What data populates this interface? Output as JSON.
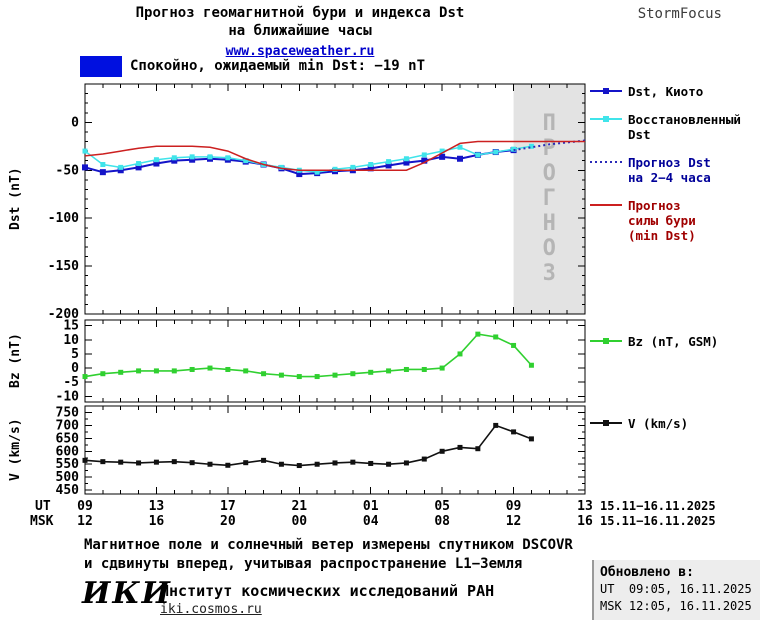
{
  "header": {
    "title_line1": "Прогноз геомагнитной бури и индекса Dst",
    "title_line2": "на ближайшие часы",
    "site_link": "www.spaceweather.ru",
    "brand": "StormFocus"
  },
  "status": {
    "label": "Спокойно, ожидаемый min Dst: −19 nT",
    "swatch_color": "#0010e0"
  },
  "axis": {
    "xlim": [
      0,
      28
    ],
    "ticks_hours": [
      0,
      4,
      8,
      12,
      16,
      20,
      24,
      28
    ],
    "ut_label": "UT",
    "msk_label": "MSK",
    "ut_tick_labels": [
      "09",
      "13",
      "17",
      "21",
      "01",
      "05",
      "09",
      "13"
    ],
    "msk_tick_labels": [
      "12",
      "16",
      "20",
      "00",
      "04",
      "08",
      "12",
      "16"
    ],
    "date_range_ut": "15.11−16.11.2025",
    "date_range_msk": "15.11−16.11.2025"
  },
  "chart_data": [
    {
      "type": "line",
      "ylabel": "Dst (nT)",
      "ylim": [
        -200,
        40
      ],
      "yticks": [
        0,
        -50,
        -100,
        -150,
        -200
      ],
      "yminor": 10,
      "forecast_region": {
        "x_start": 24,
        "x_end": 28,
        "label": "ПРОГНОЗ",
        "fill": "#e3e3e3",
        "text_color": "#b5b5b5"
      },
      "series": [
        {
          "name": "Dst, Киото",
          "color": "#1414c8",
          "style": "solid",
          "width": 2,
          "marker": "square",
          "marker_size": 6,
          "x": [
            0,
            1,
            2,
            3,
            4,
            5,
            6,
            7,
            8,
            9,
            10,
            11,
            12,
            13,
            14,
            15,
            16,
            17,
            18,
            19,
            20,
            21,
            22,
            23,
            24
          ],
          "values": [
            -47,
            -52,
            -50,
            -47,
            -43,
            -40,
            -39,
            -38,
            -39,
            -41,
            -44,
            -48,
            -54,
            -53,
            -51,
            -50,
            -48,
            -45,
            -42,
            -40,
            -36,
            -38,
            -34,
            -31,
            -29
          ]
        },
        {
          "name": "Восстановленный Dst",
          "color": "#40e4ea",
          "style": "solid",
          "width": 1.5,
          "marker": "square",
          "marker_size": 5,
          "x": [
            0,
            1,
            2,
            3,
            4,
            5,
            6,
            7,
            8,
            9,
            10,
            11,
            12,
            13,
            14,
            15,
            16,
            17,
            18,
            19,
            20,
            21,
            22,
            23,
            24,
            25
          ],
          "values": [
            -30,
            -44,
            -47,
            -43,
            -39,
            -37,
            -36,
            -36,
            -37,
            -40,
            -44,
            -47,
            -50,
            -52,
            -49,
            -47,
            -44,
            -41,
            -38,
            -34,
            -30,
            -26,
            -34,
            -31,
            -28,
            -25
          ]
        },
        {
          "name": "Прогноз Dst на 2−4 часа",
          "color": "#2a2ab8",
          "style": "dotted",
          "width": 2,
          "marker": "none",
          "label_color": "#000099",
          "x": [
            24,
            25,
            26,
            27,
            28
          ],
          "values": [
            -29,
            -26,
            -23,
            -21,
            -19
          ]
        },
        {
          "name": "Прогноз силы бури (min Dst)",
          "color": "#cc2020",
          "style": "solid",
          "width": 1.5,
          "marker": "none",
          "label_color": "#a00000",
          "x": [
            0,
            1,
            2,
            3,
            4,
            5,
            6,
            7,
            8,
            9,
            10,
            11,
            12,
            13,
            14,
            15,
            16,
            17,
            18,
            19,
            20,
            21,
            22,
            28
          ],
          "values": [
            -35,
            -33,
            -30,
            -27,
            -25,
            -25,
            -25,
            -26,
            -30,
            -38,
            -44,
            -48,
            -50,
            -50,
            -50,
            -50,
            -50,
            -50,
            -50,
            -42,
            -32,
            -22,
            -20,
            -20
          ]
        }
      ]
    },
    {
      "type": "line",
      "ylabel": "Bz (nT)",
      "ylim": [
        -12,
        17
      ],
      "yticks": [
        15,
        10,
        5,
        0,
        -5,
        -10
      ],
      "yminor": null,
      "series": [
        {
          "name": "Bz (nT, GSM)",
          "color": "#30d030",
          "style": "solid",
          "width": 1.6,
          "marker": "square",
          "marker_size": 5,
          "x": [
            0,
            1,
            2,
            3,
            4,
            5,
            6,
            7,
            8,
            9,
            10,
            11,
            12,
            13,
            14,
            15,
            16,
            17,
            18,
            19,
            20,
            21,
            22,
            23,
            24,
            25
          ],
          "values": [
            -3,
            -2,
            -1.5,
            -1,
            -1,
            -1,
            -0.5,
            0,
            -0.5,
            -1,
            -2,
            -2.5,
            -3,
            -3,
            -2.5,
            -2,
            -1.5,
            -1,
            -0.5,
            -0.5,
            0,
            5,
            12,
            11,
            8,
            1
          ]
        }
      ]
    },
    {
      "type": "line",
      "ylabel": "V (km/s)",
      "ylim": [
        435,
        775
      ],
      "yticks": [
        750,
        700,
        650,
        600,
        550,
        500,
        450
      ],
      "yminor": 25,
      "series": [
        {
          "name": "V (km/s)",
          "color": "#111111",
          "style": "solid",
          "width": 1.6,
          "marker": "square",
          "marker_size": 5,
          "x": [
            0,
            1,
            2,
            3,
            4,
            5,
            6,
            7,
            8,
            9,
            10,
            11,
            12,
            13,
            14,
            15,
            16,
            17,
            18,
            19,
            20,
            21,
            22,
            23,
            24,
            25
          ],
          "values": [
            565,
            560,
            558,
            555,
            558,
            560,
            556,
            550,
            546,
            556,
            565,
            550,
            545,
            550,
            555,
            558,
            553,
            550,
            555,
            570,
            600,
            615,
            610,
            700,
            675,
            648
          ]
        }
      ]
    }
  ],
  "footer": {
    "note_line1": "Магнитное поле и солнечный ветер измерены спутником DSCOVR",
    "note_line2": "и сдвинуты вперед, учитывая распространение L1−Земля",
    "logo": "ИКИ",
    "institute": "Институт космических исследований РАН",
    "site": "iki.cosmos.ru",
    "updated_label": "Обновлено в:",
    "updated_ut": "UT  09:05, 16.11.2025",
    "updated_msk": "MSK 12:05, 16.11.2025"
  }
}
